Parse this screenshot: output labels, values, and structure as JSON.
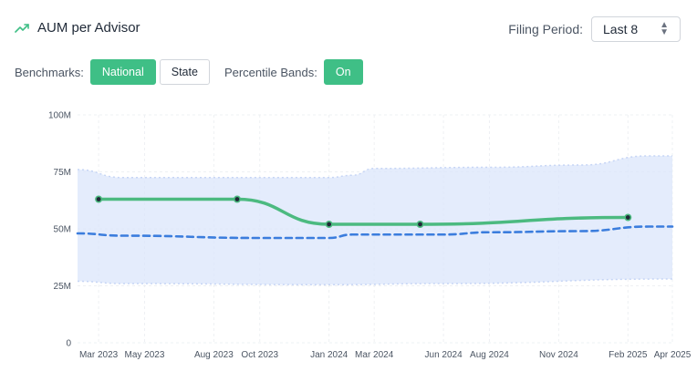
{
  "header": {
    "title": "AUM per Advisor",
    "icon": "trend-up-icon",
    "accent": "#3fbf86"
  },
  "period": {
    "label": "Filing Period:",
    "value": "Last 8"
  },
  "controls": {
    "benchmarks_label": "Benchmarks:",
    "national": "National",
    "state": "State",
    "bands_label": "Percentile Bands:",
    "bands_value": "On"
  },
  "chart_data": {
    "type": "line",
    "y_ticks": [
      "100M",
      "75M",
      "50M",
      "25M",
      "0"
    ],
    "ylim": [
      0,
      100
    ],
    "x_ticks": [
      "Mar 2023",
      "May 2023",
      "Aug 2023",
      "Oct 2023",
      "Jan 2024",
      "Mar 2024",
      "Jun 2024",
      "Aug 2024",
      "Nov 2024",
      "Feb 2025",
      "Apr 2025"
    ],
    "grid": true,
    "series": [
      {
        "kind": "advisor",
        "color": "#4cba80",
        "points": [
          [
            "2023-03-15",
            63
          ],
          [
            "2023-09-15",
            63
          ],
          [
            "2024-01-15",
            52
          ],
          [
            "2024-05-15",
            52
          ],
          [
            "2025-02-15",
            55
          ]
        ]
      },
      {
        "kind": "national-median",
        "color": "#3b7ddd",
        "style": "dashed",
        "points": [
          [
            "2023-02-15",
            48
          ],
          [
            "2023-04-15",
            47
          ],
          [
            "2023-10-15",
            46
          ],
          [
            "2024-01-15",
            46
          ],
          [
            "2024-02-15",
            47.5
          ],
          [
            "2024-06-15",
            47.5
          ],
          [
            "2024-08-15",
            48.5
          ],
          [
            "2024-12-15",
            49
          ],
          [
            "2025-03-15",
            51
          ],
          [
            "2025-04-15",
            51
          ]
        ]
      }
    ],
    "band": {
      "color": "#dbe6fb",
      "upper": [
        [
          "2023-02-15",
          76
        ],
        [
          "2023-04-15",
          72.5
        ],
        [
          "2024-01-15",
          72.5
        ],
        [
          "2024-02-15",
          73.5
        ],
        [
          "2024-03-15",
          76.5
        ],
        [
          "2024-08-15",
          77
        ],
        [
          "2024-12-15",
          78
        ],
        [
          "2025-03-15",
          82
        ],
        [
          "2025-04-15",
          82
        ]
      ],
      "lower": [
        [
          "2023-02-15",
          27
        ],
        [
          "2023-04-15",
          26
        ],
        [
          "2024-01-15",
          25.5
        ],
        [
          "2024-06-15",
          26
        ],
        [
          "2025-04-15",
          28
        ]
      ]
    }
  }
}
